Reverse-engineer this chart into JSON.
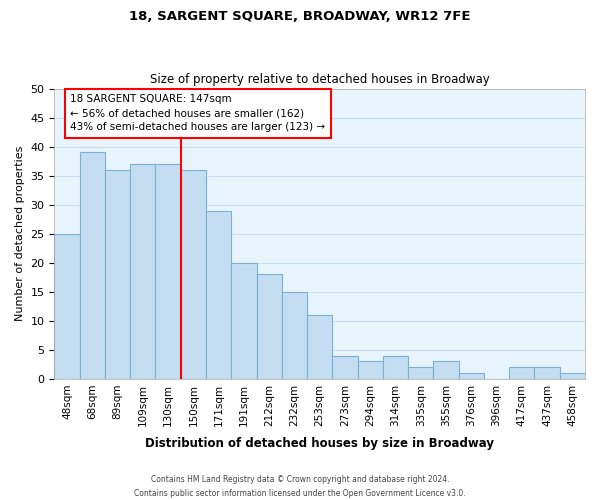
{
  "title": "18, SARGENT SQUARE, BROADWAY, WR12 7FE",
  "subtitle": "Size of property relative to detached houses in Broadway",
  "xlabel": "Distribution of detached houses by size in Broadway",
  "ylabel": "Number of detached properties",
  "bar_labels": [
    "48sqm",
    "68sqm",
    "89sqm",
    "109sqm",
    "130sqm",
    "150sqm",
    "171sqm",
    "191sqm",
    "212sqm",
    "232sqm",
    "253sqm",
    "273sqm",
    "294sqm",
    "314sqm",
    "335sqm",
    "355sqm",
    "376sqm",
    "396sqm",
    "417sqm",
    "437sqm",
    "458sqm"
  ],
  "bar_values": [
    25,
    39,
    36,
    37,
    37,
    36,
    29,
    20,
    18,
    15,
    11,
    4,
    3,
    4,
    2,
    3,
    1,
    0,
    2,
    2,
    1
  ],
  "bar_color": "#c5ddf0",
  "bar_edge_color": "#7ab0d4",
  "redline_x": 4.5,
  "annotation_title": "18 SARGENT SQUARE: 147sqm",
  "annotation_line1": "← 56% of detached houses are smaller (162)",
  "annotation_line2": "43% of semi-detached houses are larger (123) →",
  "ylim": [
    0,
    50
  ],
  "yticks": [
    0,
    5,
    10,
    15,
    20,
    25,
    30,
    35,
    40,
    45,
    50
  ],
  "grid_color": "#c8dff0",
  "background_color": "#e8f4fb",
  "footer_line1": "Contains HM Land Registry data © Crown copyright and database right 2024.",
  "footer_line2": "Contains public sector information licensed under the Open Government Licence v3.0."
}
